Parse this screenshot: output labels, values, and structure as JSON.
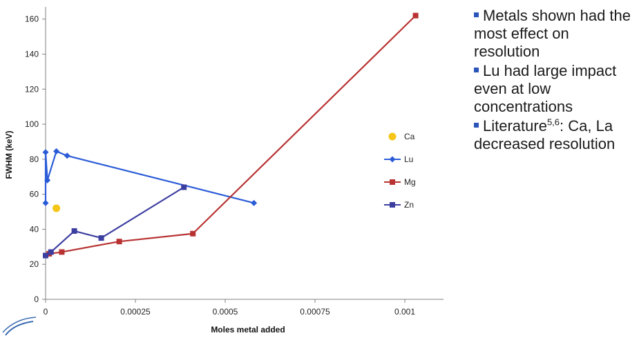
{
  "chart_data": {
    "type": "line",
    "xlabel": "Moles metal added",
    "ylabel": "FWHM (keV)",
    "xlim": [
      0,
      0.00105
    ],
    "ylim": [
      0,
      165
    ],
    "xticks": [
      0,
      0.00025,
      0.0005,
      0.00075,
      0.001
    ],
    "xtick_labels": [
      "0",
      "0.00025",
      "0.0005",
      "0.00075",
      "0.001"
    ],
    "yticks": [
      0,
      20,
      40,
      60,
      80,
      100,
      120,
      140,
      160
    ],
    "ytick_labels": [
      "0",
      "20",
      "40",
      "60",
      "80",
      "100",
      "120",
      "140",
      "160"
    ],
    "grid": false,
    "legend_position": "right",
    "series": [
      {
        "name": "Ca",
        "style": "scatter",
        "marker": "circle",
        "color": "#f5c518",
        "x": [
          3e-05
        ],
        "y": [
          52
        ]
      },
      {
        "name": "Lu",
        "style": "line",
        "marker": "diamond",
        "color": "#2a5bd7",
        "x": [
          0,
          0,
          5e-06,
          3e-05,
          6e-05,
          0.00058
        ],
        "y": [
          55,
          84,
          68,
          84.5,
          82,
          55
        ]
      },
      {
        "name": "Mg",
        "style": "line",
        "marker": "square",
        "color": "#b83232",
        "x": [
          0,
          1e-05,
          4.5e-05,
          0.000205,
          0.00041,
          0.00103
        ],
        "y": [
          25,
          26,
          27,
          33,
          37.5,
          162
        ]
      },
      {
        "name": "Zn",
        "style": "line",
        "marker": "square",
        "color": "#3c3ea0",
        "x": [
          0,
          1.5e-05,
          8e-05,
          0.000155,
          0.000385
        ],
        "y": [
          25,
          27,
          39,
          35,
          64
        ]
      }
    ]
  },
  "bullets": {
    "items": [
      {
        "text": "Metals shown had the most effect on resolution"
      },
      {
        "text": "Lu had large impact even at low concentrations"
      },
      {
        "pre": "Literature",
        "sup": "5,6",
        "post": ":  Ca, La decreased resolution"
      }
    ]
  },
  "colors": {
    "bullet": "#2a55b8",
    "axis": "#7f7f7f"
  },
  "icons": {
    "logo": "swoosh-logo"
  }
}
